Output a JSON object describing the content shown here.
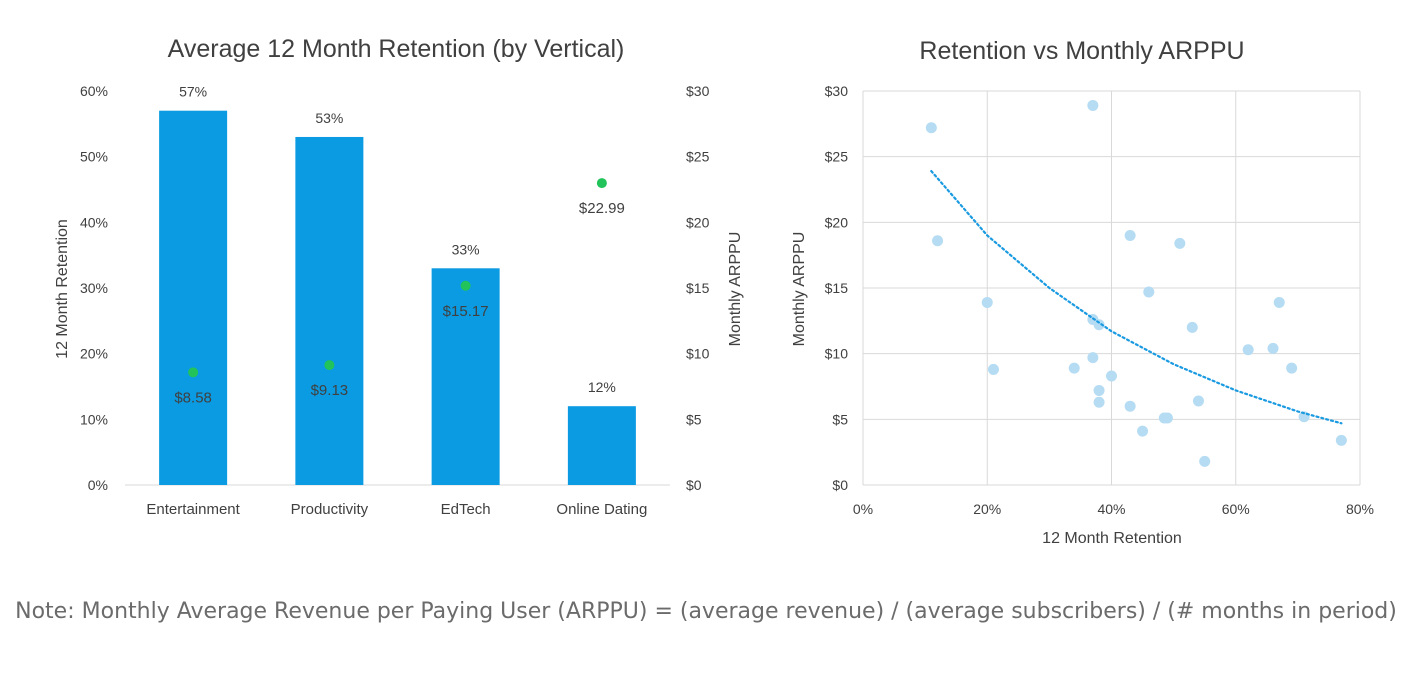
{
  "chart_data": [
    {
      "type": "bar",
      "title": "Average 12 Month Retention (by Vertical)",
      "xlabel": "",
      "ylabel": "12 Month Retention",
      "y2label": "Monthly ARPPU",
      "categories": [
        "Entertainment",
        "Productivity",
        "EdTech",
        "Online Dating"
      ],
      "ylim": [
        0,
        60
      ],
      "yticks": [
        "0%",
        "10%",
        "20%",
        "30%",
        "40%",
        "50%",
        "60%"
      ],
      "y2lim": [
        0,
        30
      ],
      "y2ticks": [
        "$0",
        "$5",
        "$10",
        "$15",
        "$20",
        "$25",
        "$30"
      ],
      "grid": false,
      "series": [
        {
          "kind": "bar",
          "axis": "left",
          "values": [
            57,
            53,
            33,
            12
          ],
          "labels": [
            "57%",
            "53%",
            "33%",
            "12%"
          ],
          "color": "#0a9be2"
        },
        {
          "kind": "point",
          "axis": "right",
          "values": [
            8.58,
            9.13,
            15.17,
            22.99
          ],
          "labels": [
            "$8.58",
            "$9.13",
            "$15.17",
            "$22.99"
          ],
          "color": "#22c35a"
        }
      ]
    },
    {
      "type": "scatter",
      "title": "Retention vs Monthly ARPPU",
      "xlabel": "12 Month Retention",
      "ylabel": "Monthly ARPPU",
      "xlim": [
        0,
        80
      ],
      "ylim": [
        0,
        30
      ],
      "xticks": [
        "0%",
        "20%",
        "40%",
        "60%",
        "80%"
      ],
      "yticks": [
        "$0",
        "$5",
        "$10",
        "$15",
        "$20",
        "$25",
        "$30"
      ],
      "grid": true,
      "color": "#b5dcf3",
      "trend_color": "#1a9ae0",
      "points": [
        {
          "x": 11,
          "y": 27.2
        },
        {
          "x": 12,
          "y": 18.6
        },
        {
          "x": 20,
          "y": 13.9
        },
        {
          "x": 21,
          "y": 8.8
        },
        {
          "x": 34,
          "y": 8.9
        },
        {
          "x": 37,
          "y": 28.9
        },
        {
          "x": 37,
          "y": 12.6
        },
        {
          "x": 37,
          "y": 9.7
        },
        {
          "x": 38,
          "y": 12.2
        },
        {
          "x": 38,
          "y": 7.2
        },
        {
          "x": 38,
          "y": 6.3
        },
        {
          "x": 40,
          "y": 8.3
        },
        {
          "x": 43,
          "y": 19.0
        },
        {
          "x": 43,
          "y": 6.0
        },
        {
          "x": 45,
          "y": 4.1
        },
        {
          "x": 46,
          "y": 14.7
        },
        {
          "x": 48.5,
          "y": 5.1
        },
        {
          "x": 49,
          "y": 5.1
        },
        {
          "x": 51,
          "y": 18.4
        },
        {
          "x": 53,
          "y": 12.0
        },
        {
          "x": 54,
          "y": 6.4
        },
        {
          "x": 55,
          "y": 1.8
        },
        {
          "x": 62,
          "y": 10.3
        },
        {
          "x": 66,
          "y": 10.4
        },
        {
          "x": 67,
          "y": 13.9
        },
        {
          "x": 69,
          "y": 8.9
        },
        {
          "x": 71,
          "y": 5.2
        },
        {
          "x": 77,
          "y": 3.4
        }
      ],
      "trendline": [
        {
          "x": 11,
          "y": 23.9
        },
        {
          "x": 20,
          "y": 19.0
        },
        {
          "x": 30,
          "y": 15.0
        },
        {
          "x": 40,
          "y": 11.7
        },
        {
          "x": 50,
          "y": 9.2
        },
        {
          "x": 60,
          "y": 7.2
        },
        {
          "x": 70,
          "y": 5.6
        },
        {
          "x": 77,
          "y": 4.7
        }
      ]
    }
  ],
  "note": "Note: Monthly Average Revenue per Paying User (ARPPU) = (average revenue) / (average subscribers) / (# months in period)"
}
